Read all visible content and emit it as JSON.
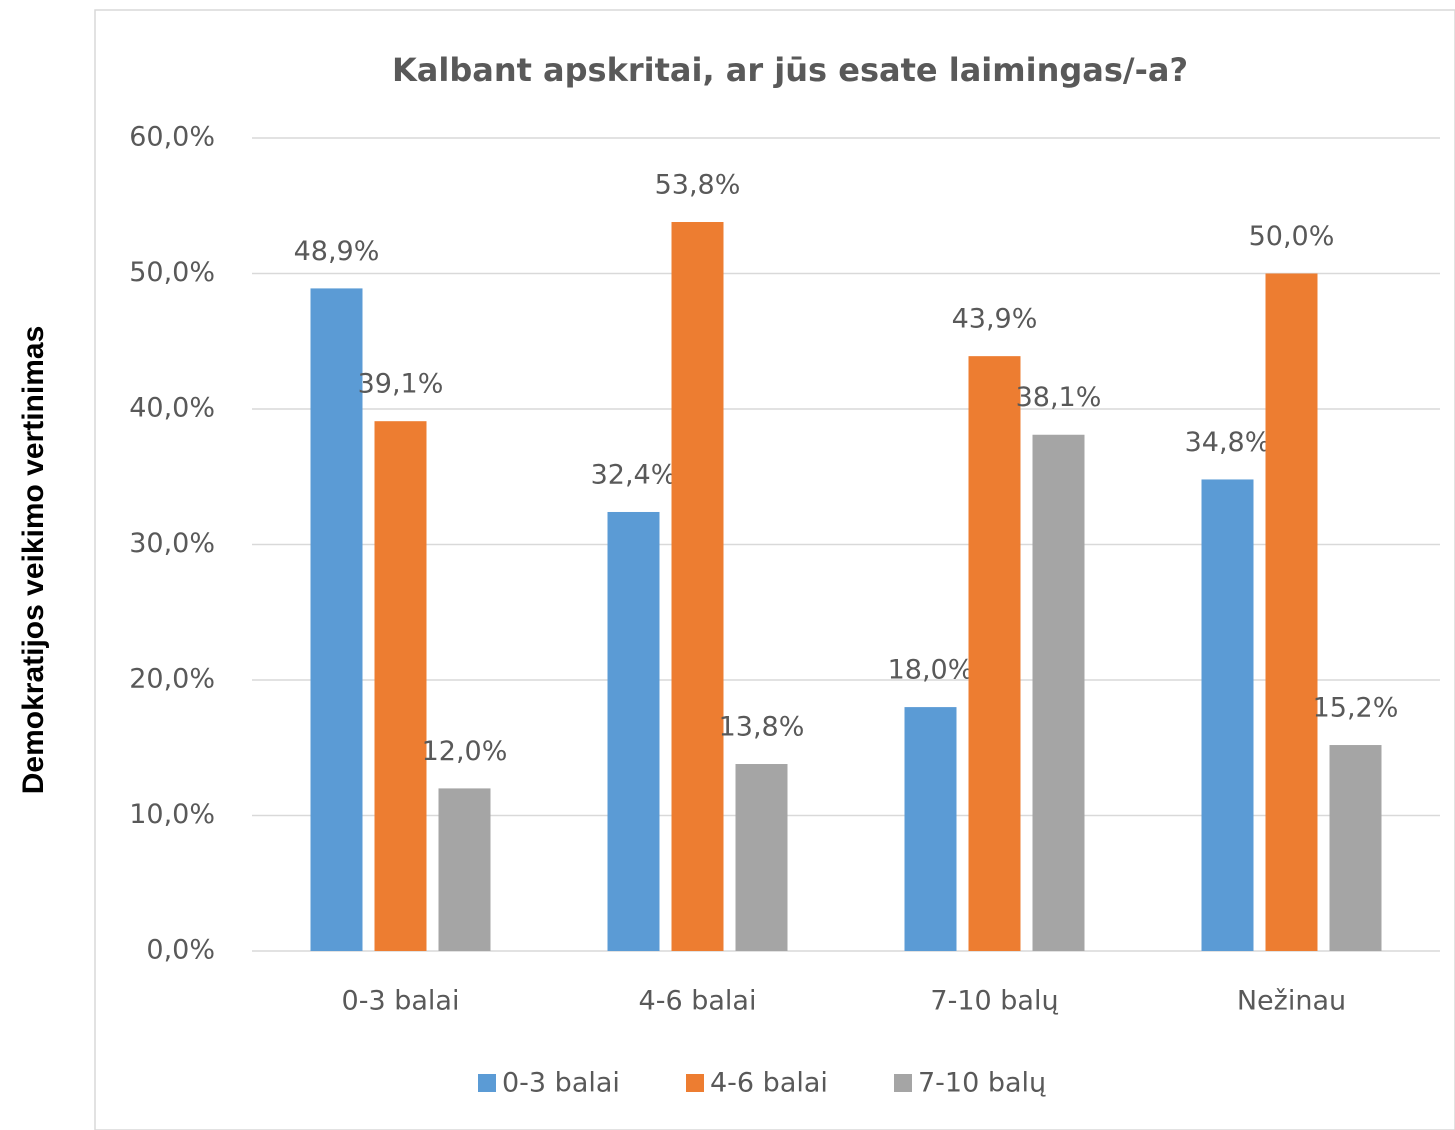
{
  "chart_data": {
    "type": "bar",
    "title": "Kalbant apskritai, ar jūs esate laimingas/-a?",
    "y_label": "Demokratijos veikimo vertinimas",
    "categories": [
      "0-3 balai",
      "4-6 balai",
      "7-10 balų",
      "Nežinau"
    ],
    "series": [
      {
        "name": "0-3 balai",
        "color": "#5b9bd5",
        "values": [
          48.9,
          32.4,
          18.0,
          34.8
        ],
        "value_labels": [
          "48,9%",
          "32,4%",
          "18,0%",
          "34,8%"
        ]
      },
      {
        "name": "4-6 balai",
        "color": "#ed7d31",
        "values": [
          39.1,
          53.8,
          43.9,
          50.0
        ],
        "value_labels": [
          "39,1%",
          "53,8%",
          "43,9%",
          "50,0%"
        ]
      },
      {
        "name": "7-10 balų",
        "color": "#a5a5a5",
        "values": [
          12.0,
          13.8,
          38.1,
          15.2
        ],
        "value_labels": [
          "12,0%",
          "13,8%",
          "38,1%",
          "15,2%"
        ]
      }
    ],
    "ylim": [
      0,
      60
    ],
    "yticks": [
      {
        "value": 0,
        "label": "0,0%"
      },
      {
        "value": 10,
        "label": "10,0%"
      },
      {
        "value": 20,
        "label": "20,0%"
      },
      {
        "value": 30,
        "label": "30,0%"
      },
      {
        "value": 40,
        "label": "40,0%"
      },
      {
        "value": 50,
        "label": "50,0%"
      },
      {
        "value": 60,
        "label": "60,0%"
      }
    ],
    "grid": true,
    "legend": "bottom"
  }
}
